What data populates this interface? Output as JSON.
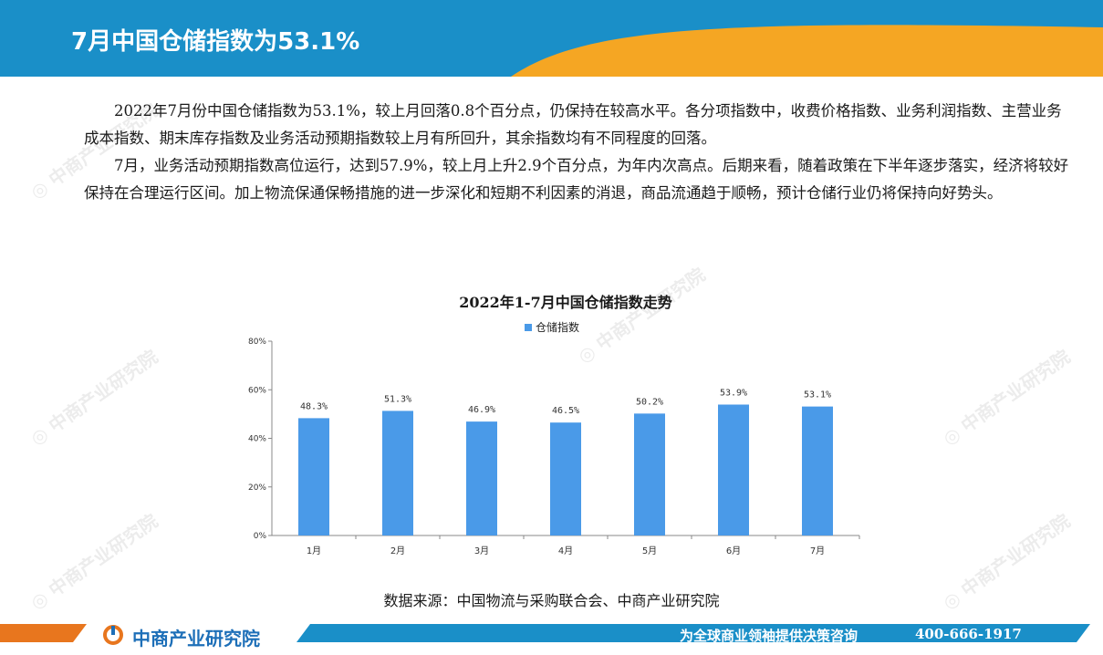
{
  "header": {
    "title": "7月中国仓储指数为53.1%",
    "colors": {
      "band": "#1a8fc8",
      "accent": "#f5a623"
    }
  },
  "paragraphs": [
    "2022年7月份中国仓储指数为53.1%，较上月回落0.8个百分点，仍保持在较高水平。各分项指数中，收费价格指数、业务利润指数、主营业务成本指数、期末库存指数及业务活动预期指数较上月有所回升，其余指数均有不同程度的回落。",
    "7月，业务活动预期指数高位运行，达到57.9%，较上月上升2.9个百分点，为年内次高点。后期来看，随着政策在下半年逐步落实，经济将较好保持在合理运行区间。加上物流保通保畅措施的进一步深化和短期不利因素的消退，商品流通趋于顺畅，预计仓储行业仍将保持向好势头。"
  ],
  "chart_data": {
    "type": "bar",
    "title": "2022年1-7月中国仓储指数走势",
    "categories": [
      "1月",
      "2月",
      "3月",
      "4月",
      "5月",
      "6月",
      "7月"
    ],
    "series": [
      {
        "name": "仓储指数",
        "values": [
          48.3,
          51.3,
          46.9,
          46.5,
          50.2,
          53.9,
          53.1
        ],
        "color": "#4a9ae8"
      }
    ],
    "data_labels": [
      "48.3%",
      "51.3%",
      "46.9%",
      "46.5%",
      "50.2%",
      "53.9%",
      "53.1%"
    ],
    "y_ticks": [
      "0%",
      "20%",
      "40%",
      "60%",
      "80%"
    ],
    "ylim": [
      0,
      80
    ],
    "grid": false,
    "legend": "top"
  },
  "source": "数据来源：中国物流与采购联合会、中商产业研究院",
  "footer": {
    "logo": "中商产业研究院",
    "slogan": "为全球商业领袖提供决策咨询",
    "phone": "400-666-1917"
  }
}
